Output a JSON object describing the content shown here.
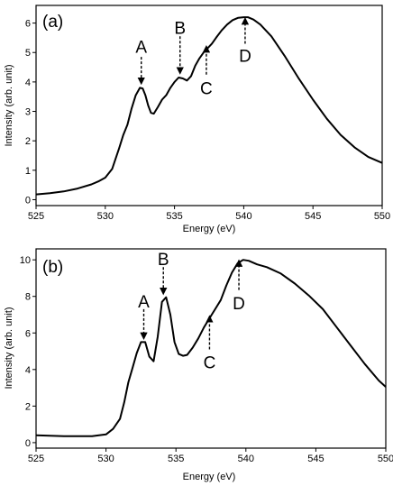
{
  "chart_data": [
    {
      "type": "line",
      "panel_label": "(a)",
      "xlabel": "Energy (eV)",
      "ylabel": "Intensity (arb. unit)",
      "xlim": [
        525,
        550
      ],
      "ylim": [
        -0.2,
        6.6
      ],
      "xticks": [
        525,
        530,
        535,
        540,
        545,
        550
      ],
      "yticks": [
        0,
        1,
        2,
        3,
        4,
        5,
        6
      ],
      "grid": false,
      "series": [
        {
          "x": [
            525,
            526,
            527,
            528,
            529,
            529.5,
            530,
            530.5,
            531,
            531.3,
            531.6,
            531.9,
            532.2,
            532.5,
            532.7,
            532.9,
            533.1,
            533.3,
            533.5,
            533.8,
            534.1,
            534.4,
            534.7,
            535,
            535.3,
            535.6,
            535.9,
            536.2,
            536.5,
            536.8,
            537.1,
            537.4,
            537.7,
            538,
            538.4,
            538.8,
            539.2,
            539.6,
            540,
            540.3,
            540.7,
            541.2,
            542,
            543,
            544,
            545,
            546,
            547,
            548,
            549,
            550
          ],
          "y": [
            0.18,
            0.22,
            0.28,
            0.38,
            0.52,
            0.62,
            0.75,
            1.05,
            1.75,
            2.2,
            2.55,
            3.1,
            3.55,
            3.8,
            3.78,
            3.55,
            3.2,
            2.95,
            2.92,
            3.15,
            3.4,
            3.55,
            3.8,
            4.0,
            4.15,
            4.12,
            4.05,
            4.2,
            4.55,
            4.8,
            5.0,
            5.15,
            5.3,
            5.5,
            5.75,
            5.95,
            6.1,
            6.18,
            6.2,
            6.2,
            6.12,
            5.95,
            5.55,
            4.85,
            4.1,
            3.4,
            2.75,
            2.2,
            1.78,
            1.45,
            1.25
          ]
        }
      ],
      "annotations": [
        {
          "label": "A",
          "x": 532.6,
          "arrow_tip_y": 3.95,
          "arrow_tail_y": 4.85,
          "label_y": 5.2
        },
        {
          "label": "B",
          "x": 535.4,
          "arrow_tip_y": 4.3,
          "arrow_tail_y": 5.55,
          "label_y": 5.85
        },
        {
          "label": "C",
          "x": 537.3,
          "arrow_tip_y": 5.2,
          "arrow_tail_y": 4.25,
          "label_y": 3.8
        },
        {
          "label": "D",
          "x": 540.1,
          "arrow_tip_y": 6.15,
          "arrow_tail_y": 5.3,
          "label_y": 4.9
        }
      ]
    },
    {
      "type": "line",
      "panel_label": "(b)",
      "xlabel": "Energy (eV)",
      "ylabel": "Intensity (arb. unit)",
      "xlim": [
        525,
        550
      ],
      "ylim": [
        -0.3,
        10.6
      ],
      "xticks": [
        525,
        530,
        535,
        540,
        545,
        550
      ],
      "yticks": [
        0,
        2,
        4,
        6,
        8,
        10
      ],
      "grid": false,
      "series": [
        {
          "x": [
            525,
            527,
            529,
            530,
            530.5,
            531,
            531.3,
            531.6,
            531.9,
            532.2,
            532.5,
            532.8,
            533.1,
            533.4,
            533.7,
            534,
            534.3,
            534.6,
            534.9,
            535.2,
            535.5,
            535.8,
            536.2,
            536.6,
            537,
            537.4,
            537.8,
            538.2,
            538.6,
            539,
            539.4,
            539.8,
            540.2,
            540.8,
            541.5,
            542.5,
            543.5,
            544.5,
            545.5,
            546.5,
            547.5,
            548.5,
            549.5,
            550
          ],
          "y": [
            0.4,
            0.35,
            0.35,
            0.45,
            0.75,
            1.3,
            2.2,
            3.3,
            4.1,
            4.9,
            5.5,
            5.5,
            4.7,
            4.45,
            5.8,
            7.7,
            7.95,
            7.0,
            5.5,
            4.85,
            4.75,
            4.8,
            5.2,
            5.7,
            6.3,
            6.8,
            7.3,
            7.8,
            8.6,
            9.3,
            9.8,
            10.0,
            9.95,
            9.75,
            9.6,
            9.25,
            8.7,
            8.05,
            7.3,
            6.3,
            5.3,
            4.3,
            3.4,
            3.05
          ]
        }
      ],
      "annotations": [
        {
          "label": "A",
          "x": 532.7,
          "arrow_tip_y": 5.7,
          "arrow_tail_y": 7.3,
          "label_y": 7.75
        },
        {
          "label": "B",
          "x": 534.1,
          "arrow_tip_y": 8.15,
          "arrow_tail_y": 9.6,
          "label_y": 10.05
        },
        {
          "label": "C",
          "x": 537.4,
          "arrow_tip_y": 6.9,
          "arrow_tail_y": 5.1,
          "label_y": 4.4
        },
        {
          "label": "D",
          "x": 539.5,
          "arrow_tip_y": 9.95,
          "arrow_tail_y": 8.35,
          "label_y": 7.65
        }
      ]
    }
  ]
}
